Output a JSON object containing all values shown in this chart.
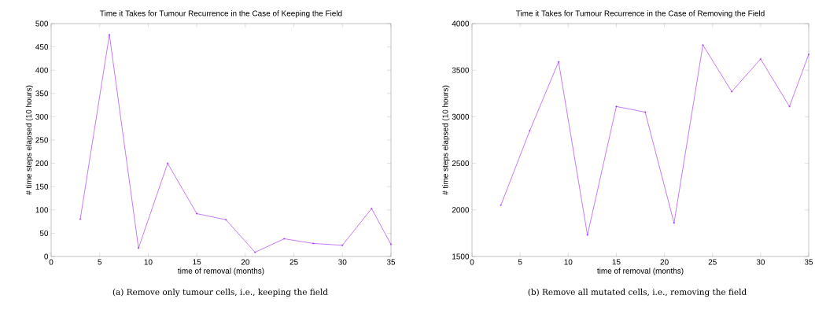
{
  "chart_data": [
    {
      "type": "line",
      "title": "Time it Takes for Tumour Recurrence in the Case of Keeping the Field",
      "xlabel": "time of removal (months)",
      "ylabel": "# time steps elapsed (10 hours)",
      "annotations": [
        "(a) Remove only tumour cells, i.e., keeping the field"
      ],
      "x": [
        3,
        6,
        9,
        12,
        15,
        18,
        21,
        24,
        27,
        30,
        33,
        35
      ],
      "values": [
        80,
        476,
        18,
        200,
        92,
        79,
        9,
        38,
        28,
        24,
        103,
        26
      ],
      "color": "#a020f0",
      "marker": "cross",
      "xlim": [
        0,
        35
      ],
      "ylim": [
        0,
        500
      ],
      "xticks": [
        0,
        5,
        10,
        15,
        20,
        25,
        30,
        35
      ],
      "yticks": [
        0,
        50,
        100,
        150,
        200,
        250,
        300,
        350,
        400,
        450,
        500
      ]
    },
    {
      "type": "line",
      "title": "Time it Takes for Tumour Recurrence in the Case of Removing the Field",
      "xlabel": "time of removal (months)",
      "ylabel": "# time steps elapsed (10 hours)",
      "annotations": [
        "(b) Remove all mutated cells, i.e., removing the field"
      ],
      "x": [
        3,
        6,
        9,
        12,
        15,
        18,
        21,
        24,
        27,
        30,
        33,
        35
      ],
      "values": [
        2050,
        2850,
        3590,
        1730,
        3110,
        3050,
        1860,
        3770,
        3270,
        3620,
        3110,
        3670
      ],
      "color": "#a020f0",
      "marker": "cross",
      "xlim": [
        0,
        35
      ],
      "ylim": [
        1500,
        4000
      ],
      "xticks": [
        0,
        5,
        10,
        15,
        20,
        25,
        30,
        35
      ],
      "yticks": [
        1500,
        2000,
        2500,
        3000,
        3500,
        4000
      ]
    }
  ]
}
